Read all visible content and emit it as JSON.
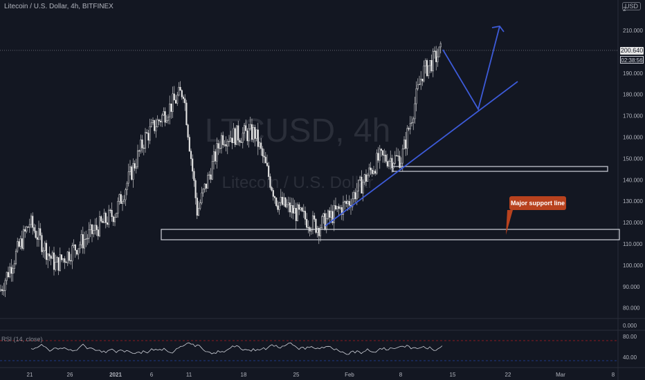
{
  "header": {
    "title": "Litecoin / U.S. Dollar, 4h, BITFINEX",
    "currency": "USD",
    "watermark_symbol": "LTCUSD, 4h",
    "watermark_name": "Litecoin / U.S. Dollar"
  },
  "price_axis": {
    "ticks": [
      "210.000",
      "190.000",
      "180.000",
      "170.000",
      "160.000",
      "150.000",
      "140.000",
      "130.000",
      "120.000",
      "110.000",
      "100.000",
      "90.000",
      "80.000"
    ],
    "current_price": "200.640",
    "countdown": "02:38:56",
    "top_partial": "2"
  },
  "rsi": {
    "label": "RSI (14, close)",
    "ticks": [
      "80.00",
      "40.00"
    ],
    "extra_tick": "0.000"
  },
  "time_axis": {
    "ticks": [
      "21",
      "26",
      "2021",
      "6",
      "11",
      "18",
      "25",
      "Feb",
      "8",
      "15",
      "22",
      "Mar",
      "8"
    ]
  },
  "annotation": {
    "callout": "Major support line"
  },
  "colors": {
    "background": "#131722",
    "candles": "#e6e6e6",
    "trendline": "#3d5bd9",
    "support_box": "#d1d4dc",
    "callout": "#b8421e",
    "rsi_line": "#d1d4dc",
    "rsi_band": "#b71c1c"
  },
  "chart_data": {
    "type": "candlestick",
    "title": "Litecoin / U.S. Dollar, 4h, BITFINEX",
    "ylim": [
      80,
      212
    ],
    "x": [
      "Dec 17",
      "Dec 21",
      "Dec 26",
      "Jan 1 2021",
      "Jan 6",
      "Jan 11",
      "Jan 18",
      "Jan 25",
      "Feb 1",
      "Feb 8",
      "Feb 13"
    ],
    "close_approx": [
      90,
      118,
      104,
      128,
      160,
      180,
      162,
      130,
      128,
      160,
      200.64
    ],
    "levels": [
      {
        "name": "Major support line",
        "low": 112,
        "high": 117
      },
      {
        "low": 145,
        "high": 147
      }
    ],
    "trendline": {
      "from": [
        "Jan 28",
        118
      ],
      "to": [
        "Feb 22",
        186
      ]
    },
    "projection": [
      [
        "Feb 13",
        200
      ],
      [
        "Feb 18",
        173
      ],
      [
        "Feb 22",
        210
      ]
    ],
    "rsi": {
      "period": 14,
      "upper": 70,
      "lower": 30,
      "range": [
        30,
        85
      ]
    }
  }
}
